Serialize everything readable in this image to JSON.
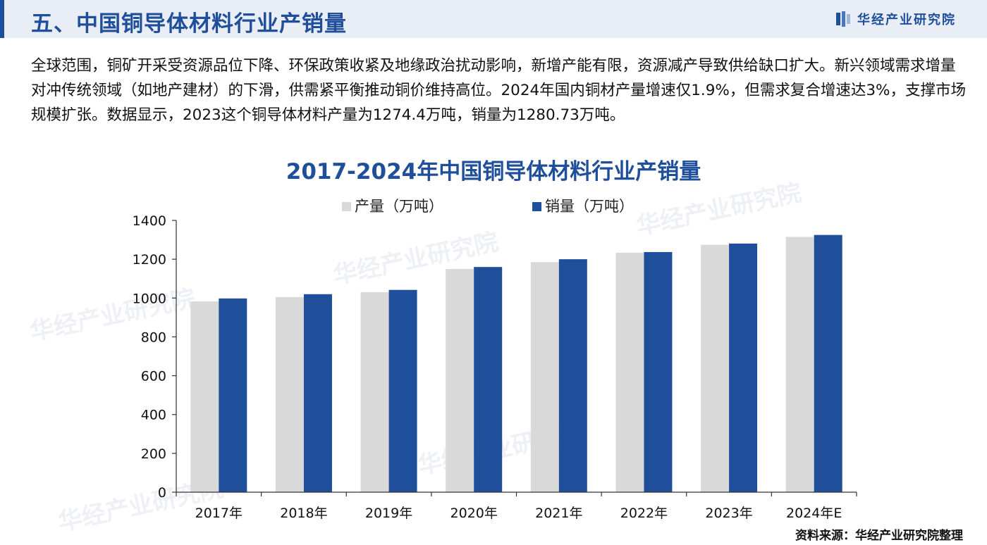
{
  "header": {
    "title": "五、中国铜导体材料行业产销量",
    "brand": "华经产业研究院",
    "logo_icon": "brand-logo-icon"
  },
  "watermark_text": "华经产业研究院",
  "description": "全球范围，铜矿开采受资源品位下降、环保政策收紧及地缘政治扰动影响，新增产能有限，资源减产导致供给缺口扩大。新兴领域需求增量对冲传统领域（如地产建材）的下滑，供需紧平衡推动铜价维持高位。2024年国内铜材产量增速仅1.9%，但需求复合增速达3%，支撑市场规模扩张。数据显示，2023这个铜导体材料产量为1274.4万吨，销量为1280.73万吨。",
  "source": "资料来源：华经产业研究院整理",
  "colors": {
    "production": "#d9d9d9",
    "sales": "#1f4e9a",
    "accent": "#1f4e9a"
  },
  "chart_data": {
    "type": "bar",
    "title": "2017-2024年中国铜导体材料行业产销量",
    "categories": [
      "2017年",
      "2018年",
      "2019年",
      "2020年",
      "2021年",
      "2022年",
      "2023年",
      "2024年E"
    ],
    "series": [
      {
        "name": "产量（万吨）",
        "values": [
          983,
          1005,
          1030,
          1150,
          1185,
          1233,
          1274.4,
          1315
        ]
      },
      {
        "name": "销量（万吨）",
        "values": [
          998,
          1020,
          1042,
          1160,
          1200,
          1237,
          1280.73,
          1325
        ]
      }
    ],
    "ylim": [
      0,
      1400
    ],
    "yticks": [
      0,
      200,
      400,
      600,
      800,
      1000,
      1200,
      1400
    ],
    "legend": "top-center",
    "grid": false
  }
}
